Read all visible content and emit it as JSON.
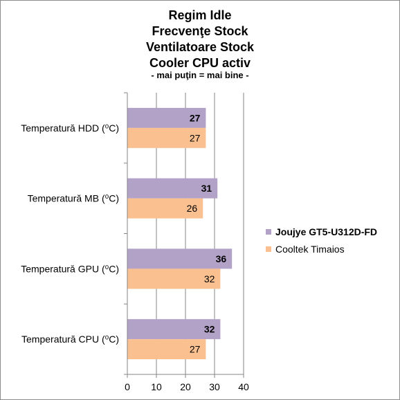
{
  "chart_data": {
    "type": "bar",
    "orientation": "horizontal",
    "title_lines": [
      "Regim Idle",
      "Frecvenţe Stock",
      "Ventilatoare Stock",
      "Cooler CPU activ"
    ],
    "subtitle": "- mai puţin = mai bine -",
    "categories": [
      "Temperatură  HDD (⁰C)",
      "Temperatură  MB (⁰C)",
      "Temperatură  GPU (⁰C)",
      "Temperatură  CPU (⁰C)"
    ],
    "series": [
      {
        "name": "Joujye GT5-U312D-FD",
        "values": [
          27,
          31,
          36,
          32
        ],
        "color": "#b2a2c7",
        "bold": true
      },
      {
        "name": "Cooltek Timaios",
        "values": [
          27,
          26,
          32,
          27
        ],
        "color": "#fac090",
        "bold": false
      }
    ],
    "xlim": [
      0,
      40
    ],
    "xticks": [
      0,
      10,
      20,
      30,
      40
    ],
    "grid": true,
    "legend_position": "right"
  }
}
